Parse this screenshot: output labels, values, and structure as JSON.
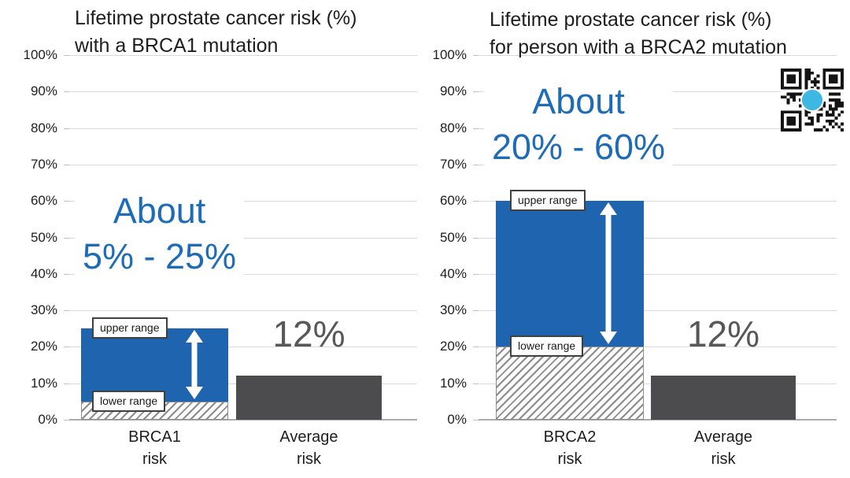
{
  "slide": {
    "background": "#ffffff"
  },
  "colors": {
    "bar_blue": "#1F64AF",
    "annotation_blue": "#1E6CB8",
    "bar_gray": "#4C4C4E",
    "value_gray": "#58585A",
    "text_dark": "#1E1E1E",
    "gridline": "#D9D9D9",
    "axis_line": "#ABABAB",
    "hatch_stroke": "#8C8C8C",
    "range_box_border": "#404040",
    "arrow_white": "#FFFFFF",
    "qr_logo_cyan": "#3EB8E2"
  },
  "qr": {
    "icon": "qr-code",
    "center_logo_icon": "cyan-circle-logo"
  },
  "chart_data": [
    {
      "type": "bar",
      "title_lines": [
        "Lifetime prostate cancer risk (%)",
        "with a BRCA1 mutation"
      ],
      "annotation_lines": [
        "About",
        "5% - 25%"
      ],
      "ylim": [
        0,
        100
      ],
      "ytick_step": 10,
      "ylabel_ticks": [
        "0%",
        "10%",
        "20%",
        "30%",
        "40%",
        "50%",
        "60%",
        "70%",
        "80%",
        "90%",
        "100%"
      ],
      "grid": true,
      "legend": false,
      "bars": [
        {
          "style": "range",
          "category_lines": [
            "BRCA1",
            "risk"
          ],
          "lower": 5,
          "upper": 25,
          "upper_label": "upper range",
          "lower_label": "lower range"
        },
        {
          "style": "solid",
          "category_lines": [
            "Average",
            "risk"
          ],
          "value": 12,
          "value_label": "12%"
        }
      ]
    },
    {
      "type": "bar",
      "title_lines": [
        "Lifetime prostate cancer risk (%)",
        "for person with a BRCA2 mutation"
      ],
      "annotation_lines": [
        "About",
        "20% - 60%"
      ],
      "ylim": [
        0,
        100
      ],
      "ytick_step": 10,
      "ylabel_ticks": [
        "0%",
        "10%",
        "20%",
        "30%",
        "40%",
        "50%",
        "60%",
        "70%",
        "80%",
        "90%",
        "100%"
      ],
      "grid": true,
      "legend": false,
      "bars": [
        {
          "style": "range",
          "category_lines": [
            "BRCA2",
            "risk"
          ],
          "lower": 20,
          "upper": 60,
          "upper_label": "upper range",
          "lower_label": "lower range"
        },
        {
          "style": "solid",
          "category_lines": [
            "Average",
            "risk"
          ],
          "value": 12,
          "value_label": "12%"
        }
      ]
    }
  ]
}
